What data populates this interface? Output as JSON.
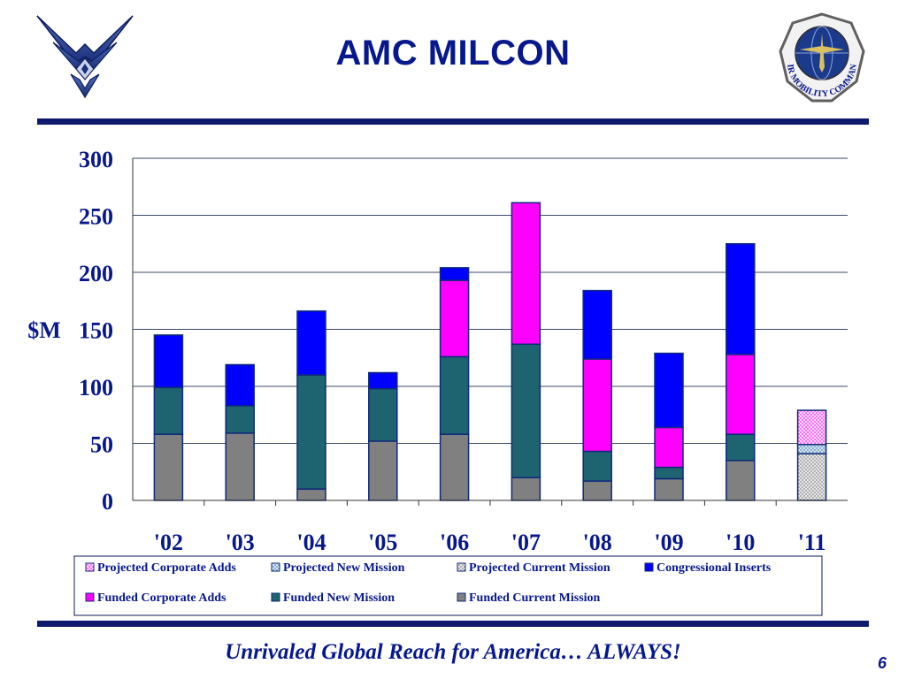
{
  "header": {
    "title": "AMC MILCON",
    "logo_left_icon": "air-force-symbol",
    "seal_right_icon": "air-mobility-command-seal",
    "seal_text": "AIR MOBILITY COMMAND"
  },
  "footer": {
    "tagline": "Unrivaled Global Reach for America…  ALWAYS!",
    "page_number": "6"
  },
  "colors": {
    "brand_navy": "#06188c",
    "rule": "#0f1a6e"
  },
  "chart_data": {
    "type": "bar",
    "stacked": true,
    "ylabel": "$M",
    "ylim": [
      0,
      300
    ],
    "yticks": [
      0,
      50,
      100,
      150,
      200,
      250,
      300
    ],
    "grid": true,
    "legend_position": "bottom",
    "categories": [
      "'02",
      "'03",
      "'04",
      "'05",
      "'06",
      "'07",
      "'08",
      "'09",
      "'10",
      "'11"
    ],
    "series": [
      {
        "name": "Funded Current Mission",
        "color": "#808080",
        "pattern": "solid",
        "values": [
          58,
          59,
          10,
          52,
          58,
          20,
          17,
          19,
          35,
          0
        ]
      },
      {
        "name": "Funded New Mission",
        "color": "#1e6470",
        "pattern": "solid",
        "values": [
          41,
          24,
          100,
          46,
          68,
          117,
          26,
          10,
          23,
          0
        ]
      },
      {
        "name": "Funded Corporate Adds",
        "color": "#ff00ff",
        "pattern": "solid",
        "values": [
          0,
          0,
          0,
          0,
          67,
          124,
          81,
          35,
          70,
          0
        ]
      },
      {
        "name": "Congressional Inserts",
        "color": "#0000ff",
        "pattern": "solid",
        "values": [
          46,
          36,
          56,
          14,
          11,
          0,
          60,
          65,
          97,
          0
        ]
      },
      {
        "name": "Projected Current Mission",
        "color": "#a9a9a9",
        "pattern": "dots",
        "values": [
          0,
          0,
          0,
          0,
          0,
          0,
          0,
          0,
          0,
          41
        ]
      },
      {
        "name": "Projected New Mission",
        "color": "#8fbbd9",
        "pattern": "dots",
        "values": [
          0,
          0,
          0,
          0,
          0,
          0,
          0,
          0,
          0,
          8
        ]
      },
      {
        "name": "Projected Corporate Adds",
        "color": "#ff66ff",
        "pattern": "dots",
        "values": [
          0,
          0,
          0,
          0,
          0,
          0,
          0,
          0,
          0,
          30
        ]
      }
    ],
    "legend_order": [
      "Projected Corporate Adds",
      "Projected New Mission",
      "Projected Current Mission",
      "Congressional Inserts",
      "Funded Corporate Adds",
      "Funded New Mission",
      "Funded Current Mission"
    ]
  }
}
